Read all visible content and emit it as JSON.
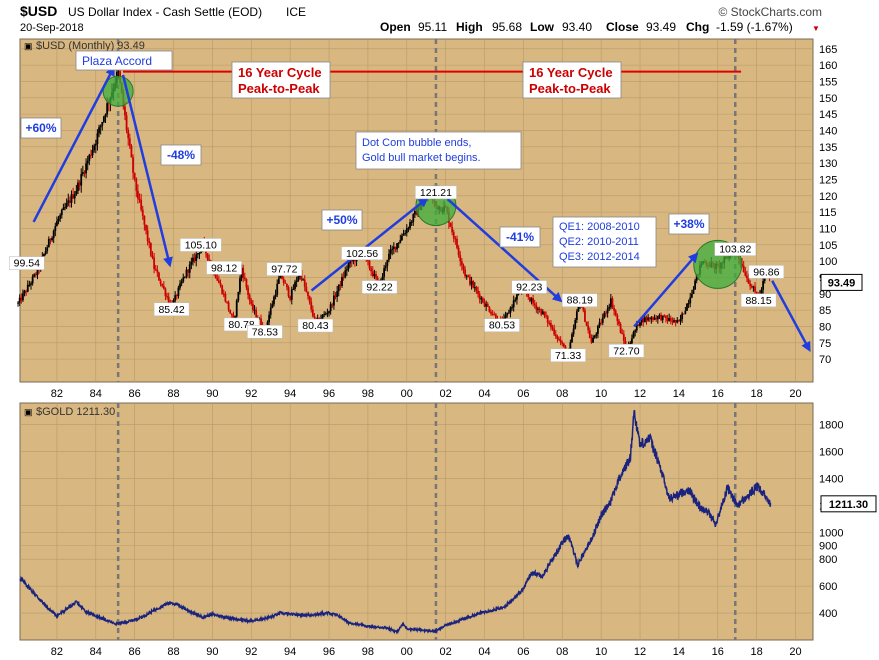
{
  "header": {
    "symbol": "$USD",
    "description": "US Dollar Index - Cash Settle (EOD)",
    "exchange": "ICE",
    "date": "20-Sep-2018",
    "open_label": "Open",
    "open": "95.11",
    "high_label": "High",
    "high": "95.68",
    "low_label": "Low",
    "low": "93.40",
    "close_label": "Close",
    "close": "93.49",
    "chg_label": "Chg",
    "chg": "-1.59 (-1.67%)",
    "brand": "© StockCharts.com"
  },
  "colors": {
    "panel_bg": "#d9b780",
    "usd_up": "#000000",
    "usd_down": "#cc0000",
    "gold_line": "#1a237e",
    "arrow": "#1f3de0",
    "circle": "#3cae3c",
    "cycle_line": "#e00000"
  },
  "chart_data": [
    {
      "type": "candlestick",
      "title": "$USD (Monthly) 93.49",
      "legend": "$USD (Monthly) 93.49",
      "current_value_label": "93.49",
      "xlim": [
        1980.1,
        2020.9
      ],
      "ylim": [
        63,
        168
      ],
      "x_ticks": [
        82,
        84,
        86,
        88,
        90,
        92,
        94,
        96,
        98,
        0,
        2,
        4,
        6,
        8,
        10,
        12,
        14,
        16,
        18,
        20
      ],
      "x_tick_labels": [
        "82",
        "84",
        "86",
        "88",
        "90",
        "92",
        "94",
        "96",
        "98",
        "00",
        "02",
        "04",
        "06",
        "08",
        "10",
        "12",
        "14",
        "16",
        "18",
        "20"
      ],
      "y_ticks": [
        70,
        75,
        80,
        85,
        90,
        95,
        100,
        105,
        110,
        115,
        120,
        125,
        130,
        135,
        140,
        145,
        150,
        155,
        160,
        165
      ],
      "series": [
        {
          "name": "$USD",
          "x": [
            1980.0,
            1981.0,
            1982.0,
            1983.0,
            1984.0,
            1985.15,
            1986.0,
            1987.0,
            1987.9,
            1988.6,
            1989.5,
            1990.5,
            1991.1,
            1991.5,
            1992.0,
            1992.7,
            1993.5,
            1994.0,
            1994.5,
            1995.3,
            1996.0,
            1997.0,
            1997.7,
            1998.6,
            1999.0,
            2000.0,
            2001.1,
            2001.5,
            2002.0,
            2003.0,
            2004.0,
            2004.9,
            2005.9,
            2006.5,
            2007.0,
            2008.3,
            2008.9,
            2009.5,
            2010.5,
            2011.3,
            2012.0,
            2013.0,
            2014.0,
            2014.5,
            2015.2,
            2016.0,
            2016.9,
            2017.5,
            2018.1,
            2018.5,
            2018.72
          ],
          "values": [
            87,
            97,
            112,
            122,
            137,
            158,
            124,
            98,
            86,
            96,
            105,
            91,
            81,
            98,
            86,
            79,
            96,
            89,
            97,
            81,
            85,
            99,
            102.6,
            92.2,
            101,
            110,
            121.2,
            117,
            116,
            96,
            87,
            80.5,
            92.3,
            87,
            84,
            71.3,
            88.2,
            75,
            88,
            73,
            82,
            83,
            81,
            88,
            100,
            98,
            103.8,
            95,
            88.2,
            96.9,
            93.5
          ]
        }
      ],
      "labels": [
        {
          "x": 1980.45,
          "y": 99.54,
          "text": "99.54"
        },
        {
          "x": 1985.15,
          "y": 158,
          "text": "Plaza Accord"
        },
        {
          "x": 1987.9,
          "y": 85.42,
          "text": "85.42"
        },
        {
          "x": 1989.4,
          "y": 105.1,
          "text": "105.10"
        },
        {
          "x": 1990.6,
          "y": 98.12,
          "text": "98.12"
        },
        {
          "x": 1991.5,
          "y": 80.78,
          "text": "80.78"
        },
        {
          "x": 1992.7,
          "y": 78.53,
          "text": "78.53"
        },
        {
          "x": 1993.7,
          "y": 97.72,
          "text": "97.72"
        },
        {
          "x": 1995.3,
          "y": 80.43,
          "text": "80.43"
        },
        {
          "x": 1997.7,
          "y": 102.56,
          "text": "102.56"
        },
        {
          "x": 1998.6,
          "y": 92.22,
          "text": "92.22"
        },
        {
          "x": 2001.5,
          "y": 121.21,
          "text": "121.21"
        },
        {
          "x": 2004.9,
          "y": 80.53,
          "text": "80.53"
        },
        {
          "x": 2006.3,
          "y": 92.23,
          "text": "92.23"
        },
        {
          "x": 2008.9,
          "y": 88.19,
          "text": "88.19"
        },
        {
          "x": 2008.3,
          "y": 71.33,
          "text": "71.33"
        },
        {
          "x": 2011.3,
          "y": 72.7,
          "text": "72.70"
        },
        {
          "x": 2016.9,
          "y": 103.82,
          "text": "103.82"
        },
        {
          "x": 2018.5,
          "y": 96.86,
          "text": "96.86"
        },
        {
          "x": 2018.1,
          "y": 88.15,
          "text": "88.15"
        }
      ],
      "annotations": {
        "cycle_left": "16 Year Cycle\nPeak-to-Peak",
        "cycle_right": "16 Year Cycle\nPeak-to-Peak",
        "dotcom": "Dot Com bubble ends,\nGold bull market begins.",
        "qe": [
          "QE1: 2008-2010",
          "QE2: 2010-2011",
          "QE3: 2012-2014"
        ],
        "pct_up_1": "+60%",
        "pct_down_1": "-48%",
        "pct_up_2": "+50%",
        "pct_down_2": "-41%",
        "pct_up_3": "+38%"
      },
      "arrows": [
        {
          "from": [
            1980.8,
            112
          ],
          "to": [
            1984.9,
            159
          ]
        },
        {
          "from": [
            1985.4,
            157
          ],
          "to": [
            1987.8,
            99
          ]
        },
        {
          "from": [
            1995.1,
            91
          ],
          "to": [
            2001.0,
            119
          ]
        },
        {
          "from": [
            2002.1,
            119
          ],
          "to": [
            2007.9,
            88
          ]
        },
        {
          "from": [
            2011.7,
            80
          ],
          "to": [
            2014.9,
            102
          ]
        },
        {
          "from": [
            2018.8,
            94
          ],
          "to": [
            2020.7,
            73
          ]
        }
      ],
      "circles": [
        {
          "x": 1985.15,
          "y": 152
        },
        {
          "x": 2001.5,
          "y": 117
        },
        {
          "x": 2016.0,
          "y": 99
        }
      ],
      "vertical_markers": [
        1985.15,
        2001.5,
        2016.9
      ]
    },
    {
      "type": "line",
      "title": "$GOLD 1211.30",
      "legend": "$GOLD 1211.30",
      "current_value_label": "1211.30",
      "xlim": [
        1980.1,
        2020.9
      ],
      "ylim": [
        200,
        1960
      ],
      "x_ticks": [
        82,
        84,
        86,
        88,
        90,
        92,
        94,
        96,
        98,
        0,
        2,
        4,
        6,
        8,
        10,
        12,
        14,
        16,
        18,
        20
      ],
      "x_tick_labels": [
        "82",
        "84",
        "86",
        "88",
        "90",
        "92",
        "94",
        "96",
        "98",
        "00",
        "02",
        "04",
        "06",
        "08",
        "10",
        "12",
        "14",
        "16",
        "18",
        "20"
      ],
      "y_ticks": [
        400,
        600,
        800,
        900,
        1000,
        1200,
        1400,
        1600,
        1800
      ],
      "y_tick_labels": [
        "400",
        "600",
        "800",
        "900",
        "1000",
        "1200",
        "1400",
        "1600",
        "1800"
      ],
      "series": [
        {
          "name": "$GOLD",
          "x": [
            1980.1,
            1980.5,
            1981.0,
            1981.5,
            1982.0,
            1982.5,
            1983.0,
            1983.5,
            1984.0,
            1984.5,
            1985.0,
            1985.5,
            1986.0,
            1986.5,
            1987.0,
            1987.5,
            1987.9,
            1988.5,
            1989.0,
            1989.5,
            1990.0,
            1991.0,
            1992.0,
            1993.0,
            1993.5,
            1994.0,
            1995.0,
            1996.0,
            1996.5,
            1997.0,
            1998.0,
            1999.0,
            1999.5,
            1999.8,
            2000.0,
            2001.0,
            2001.5,
            2002.0,
            2003.0,
            2004.0,
            2005.0,
            2006.0,
            2006.4,
            2007.0,
            2008.0,
            2008.3,
            2008.8,
            2009.5,
            2010.0,
            2010.5,
            2011.0,
            2011.5,
            2011.7,
            2012.0,
            2012.5,
            2013.0,
            2013.5,
            2014.0,
            2014.5,
            2015.0,
            2015.5,
            2015.9,
            2016.5,
            2017.0,
            2017.5,
            2018.0,
            2018.5,
            2018.72
          ],
          "values": [
            660,
            600,
            520,
            440,
            380,
            430,
            480,
            410,
            380,
            350,
            320,
            330,
            350,
            380,
            420,
            460,
            480,
            440,
            400,
            370,
            390,
            360,
            340,
            370,
            400,
            390,
            385,
            400,
            380,
            330,
            300,
            290,
            260,
            320,
            285,
            270,
            265,
            310,
            360,
            410,
            440,
            580,
            700,
            680,
            920,
            980,
            760,
            950,
            1120,
            1240,
            1420,
            1550,
            1900,
            1650,
            1700,
            1500,
            1250,
            1280,
            1320,
            1200,
            1150,
            1060,
            1330,
            1200,
            1260,
            1340,
            1260,
            1211.3
          ]
        }
      ],
      "vertical_markers": [
        1985.15,
        2001.5,
        2016.9
      ]
    }
  ]
}
